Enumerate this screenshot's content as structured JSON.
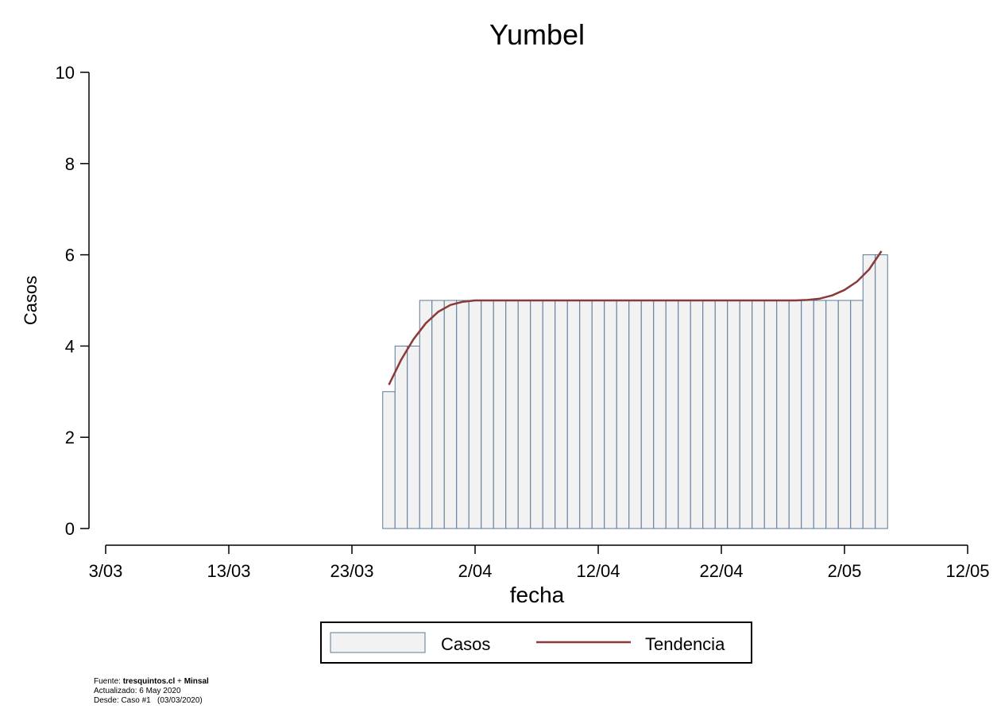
{
  "chart_data": {
    "type": "bar",
    "title": "Yumbel",
    "xlabel": "fecha",
    "ylabel": "Casos",
    "ylim": [
      0,
      10
    ],
    "y_ticks": [
      0,
      2,
      4,
      6,
      8,
      10
    ],
    "x_range": [
      "2020-03-03",
      "2020-05-12"
    ],
    "x_ticks": [
      {
        "date": "2020-03-03",
        "label": "3/03"
      },
      {
        "date": "2020-03-13",
        "label": "13/03"
      },
      {
        "date": "2020-03-23",
        "label": "23/03"
      },
      {
        "date": "2020-04-02",
        "label": "2/04"
      },
      {
        "date": "2020-04-12",
        "label": "12/04"
      },
      {
        "date": "2020-04-22",
        "label": "22/04"
      },
      {
        "date": "2020-05-02",
        "label": "2/05"
      },
      {
        "date": "2020-05-12",
        "label": "12/05"
      }
    ],
    "grid": false,
    "legend_position": "bottom-center",
    "series": [
      {
        "name": "Casos",
        "kind": "bar",
        "fill": "#f2f2f2",
        "stroke": "#5c7897",
        "x": [
          "2020-03-26",
          "2020-03-27",
          "2020-03-28",
          "2020-03-29",
          "2020-03-30",
          "2020-03-31",
          "2020-04-01",
          "2020-04-02",
          "2020-04-03",
          "2020-04-04",
          "2020-04-05",
          "2020-04-06",
          "2020-04-07",
          "2020-04-08",
          "2020-04-09",
          "2020-04-10",
          "2020-04-11",
          "2020-04-12",
          "2020-04-13",
          "2020-04-14",
          "2020-04-15",
          "2020-04-16",
          "2020-04-17",
          "2020-04-18",
          "2020-04-19",
          "2020-04-20",
          "2020-04-21",
          "2020-04-22",
          "2020-04-23",
          "2020-04-24",
          "2020-04-25",
          "2020-04-26",
          "2020-04-27",
          "2020-04-28",
          "2020-04-29",
          "2020-04-30",
          "2020-05-01",
          "2020-05-02",
          "2020-05-03",
          "2020-05-04",
          "2020-05-05"
        ],
        "values": [
          3,
          4,
          4,
          5,
          5,
          5,
          5,
          5,
          5,
          5,
          5,
          5,
          5,
          5,
          5,
          5,
          5,
          5,
          5,
          5,
          5,
          5,
          5,
          5,
          5,
          5,
          5,
          5,
          5,
          5,
          5,
          5,
          5,
          5,
          5,
          5,
          5,
          5,
          5,
          6,
          6
        ]
      },
      {
        "name": "Tendencia",
        "kind": "line",
        "color": "#8b3a3a",
        "x": [
          "2020-03-26",
          "2020-03-27",
          "2020-03-28",
          "2020-03-29",
          "2020-03-30",
          "2020-03-31",
          "2020-04-01",
          "2020-04-02",
          "2020-04-03",
          "2020-04-04",
          "2020-04-05",
          "2020-04-06",
          "2020-04-07",
          "2020-04-08",
          "2020-04-09",
          "2020-04-10",
          "2020-04-11",
          "2020-04-12",
          "2020-04-13",
          "2020-04-14",
          "2020-04-15",
          "2020-04-16",
          "2020-04-17",
          "2020-04-18",
          "2020-04-19",
          "2020-04-20",
          "2020-04-21",
          "2020-04-22",
          "2020-04-23",
          "2020-04-24",
          "2020-04-25",
          "2020-04-26",
          "2020-04-27",
          "2020-04-28",
          "2020-04-29",
          "2020-04-30",
          "2020-05-01",
          "2020-05-02",
          "2020-05-03",
          "2020-05-04",
          "2020-05-05"
        ],
        "values": [
          3.15,
          3.7,
          4.15,
          4.5,
          4.75,
          4.9,
          4.97,
          5.0,
          5.0,
          5.0,
          5.0,
          5.0,
          5.0,
          5.0,
          5.0,
          5.0,
          5.0,
          5.0,
          5.0,
          5.0,
          5.0,
          5.0,
          5.0,
          5.0,
          5.0,
          5.0,
          5.0,
          5.0,
          5.0,
          5.0,
          5.0,
          5.0,
          5.0,
          5.0,
          5.01,
          5.04,
          5.11,
          5.23,
          5.41,
          5.68,
          6.08
        ]
      }
    ]
  },
  "footnote": {
    "line1_prefix": "Fuente: ",
    "line1_bold1": "tresquintos.cl",
    "line1_mid": " + ",
    "line1_bold2": "Minsal",
    "line2": "Actualizado: 6 May 2020",
    "line3": "Desde: Caso #1   (03/03/2020)"
  }
}
